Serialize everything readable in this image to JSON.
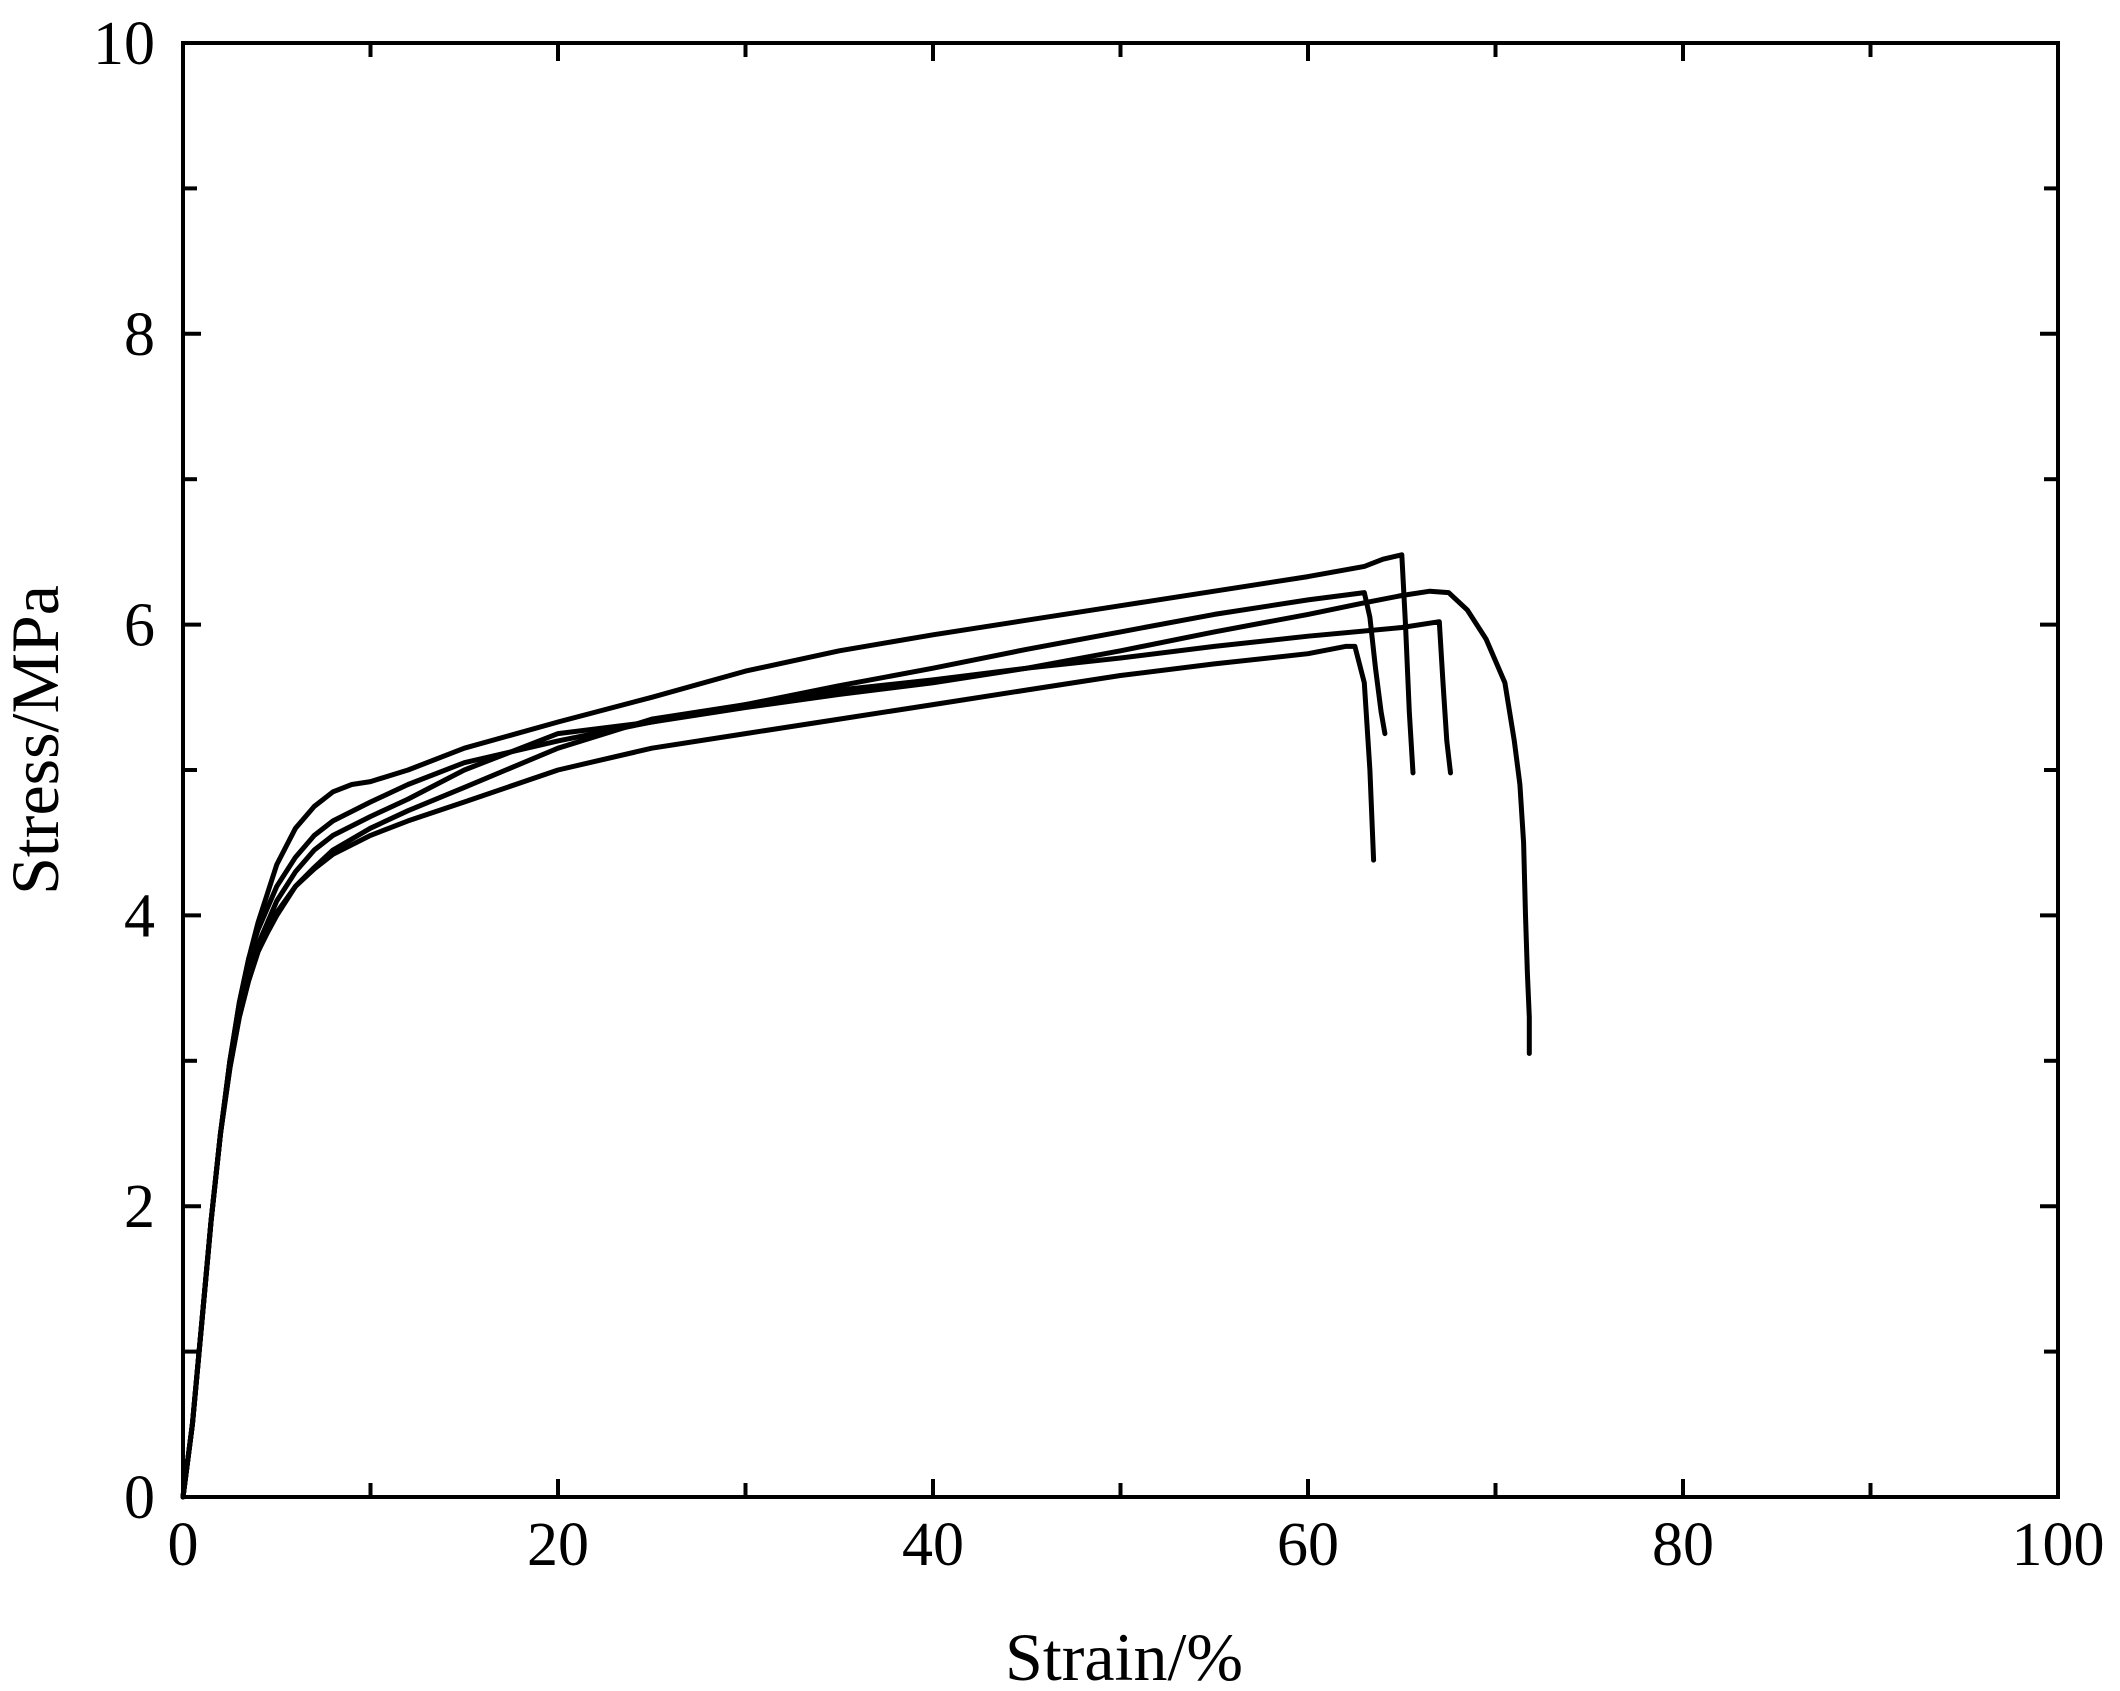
{
  "chart_data": {
    "type": "line",
    "title": "",
    "xlabel": "Strain/%",
    "ylabel": "Stress/MPa",
    "xlim": [
      0,
      100
    ],
    "ylim": [
      0,
      10
    ],
    "xticks": [
      0,
      20,
      40,
      60,
      80,
      100
    ],
    "yticks": [
      0,
      2,
      4,
      6,
      8,
      10
    ],
    "xtick_labels": [
      "0",
      "20",
      "40",
      "60",
      "80",
      "100"
    ],
    "ytick_labels": [
      "0",
      "2",
      "4",
      "6",
      "8",
      "10"
    ],
    "x_minor_step": 10,
    "y_minor_step": 1,
    "grid": false,
    "legend": false,
    "line_color": "#000000",
    "series": [
      {
        "x": [
          0,
          0.5,
          1,
          1.5,
          2,
          2.5,
          3,
          3.5,
          4,
          4.5,
          5,
          6,
          7,
          8,
          9,
          10,
          12,
          15,
          20,
          25,
          30,
          35,
          40,
          45,
          50,
          55,
          60,
          63,
          64,
          65,
          65.2,
          65.4,
          65.6
        ],
        "y": [
          0,
          0.5,
          1.2,
          1.9,
          2.5,
          3.0,
          3.4,
          3.7,
          3.95,
          4.15,
          4.35,
          4.6,
          4.75,
          4.85,
          4.9,
          4.92,
          5.0,
          5.15,
          5.33,
          5.5,
          5.68,
          5.82,
          5.93,
          6.03,
          6.13,
          6.23,
          6.33,
          6.4,
          6.45,
          6.48,
          6.0,
          5.4,
          4.98
        ]
      },
      {
        "x": [
          0,
          0.5,
          1,
          1.5,
          2,
          2.5,
          3,
          3.5,
          4,
          4.5,
          5,
          6,
          7,
          8,
          10,
          12,
          15,
          20,
          25,
          30,
          35,
          40,
          45,
          50,
          55,
          60,
          63,
          63.3,
          63.6,
          63.9,
          64.1
        ],
        "y": [
          0,
          0.5,
          1.2,
          1.9,
          2.5,
          3.0,
          3.4,
          3.7,
          3.9,
          4.05,
          4.2,
          4.4,
          4.55,
          4.65,
          4.78,
          4.9,
          5.05,
          5.2,
          5.33,
          5.45,
          5.58,
          5.7,
          5.83,
          5.95,
          6.07,
          6.17,
          6.22,
          6.05,
          5.7,
          5.4,
          5.25
        ]
      },
      {
        "x": [
          0,
          0.5,
          1,
          1.5,
          2,
          2.5,
          3,
          3.5,
          4,
          4.5,
          5,
          6,
          7,
          8,
          10,
          12,
          15,
          20,
          25,
          30,
          35,
          40,
          45,
          50,
          55,
          60,
          62,
          62.5,
          63.0,
          63.3,
          63.5
        ],
        "y": [
          0,
          0.5,
          1.2,
          1.9,
          2.5,
          2.95,
          3.3,
          3.55,
          3.75,
          3.9,
          4.02,
          4.2,
          4.32,
          4.42,
          4.55,
          4.65,
          4.78,
          5.0,
          5.15,
          5.25,
          5.35,
          5.45,
          5.55,
          5.65,
          5.73,
          5.8,
          5.85,
          5.85,
          5.6,
          5.0,
          4.38
        ]
      },
      {
        "x": [
          0,
          0.5,
          1,
          1.5,
          2,
          2.5,
          3,
          3.5,
          4,
          4.5,
          5,
          6,
          7,
          8,
          10,
          12,
          15,
          20,
          25,
          30,
          35,
          40,
          45,
          50,
          55,
          60,
          65,
          67,
          67.2,
          67.4,
          67.6
        ],
        "y": [
          0,
          0.5,
          1.2,
          1.9,
          2.5,
          2.95,
          3.3,
          3.55,
          3.75,
          3.88,
          4.0,
          4.2,
          4.33,
          4.45,
          4.6,
          4.72,
          4.88,
          5.15,
          5.35,
          5.45,
          5.55,
          5.62,
          5.7,
          5.77,
          5.85,
          5.92,
          5.98,
          6.02,
          5.6,
          5.2,
          4.98
        ]
      },
      {
        "x": [
          0,
          0.5,
          1,
          1.5,
          2,
          2.5,
          3,
          3.5,
          4,
          4.5,
          5,
          6,
          7,
          8,
          10,
          12,
          15,
          20,
          25,
          30,
          35,
          40,
          45,
          50,
          55,
          60,
          63,
          65,
          66.5,
          67.5,
          68.5,
          69.5,
          70.5,
          71,
          71.3,
          71.5,
          71.6,
          71.7,
          71.8,
          71.8
        ],
        "y": [
          0,
          0.5,
          1.2,
          1.9,
          2.5,
          3.0,
          3.35,
          3.6,
          3.8,
          3.95,
          4.1,
          4.3,
          4.45,
          4.55,
          4.68,
          4.8,
          5.0,
          5.25,
          5.33,
          5.43,
          5.52,
          5.6,
          5.7,
          5.82,
          5.95,
          6.07,
          6.15,
          6.2,
          6.23,
          6.22,
          6.1,
          5.9,
          5.6,
          5.2,
          4.9,
          4.5,
          4.0,
          3.6,
          3.3,
          3.05
        ]
      }
    ]
  }
}
